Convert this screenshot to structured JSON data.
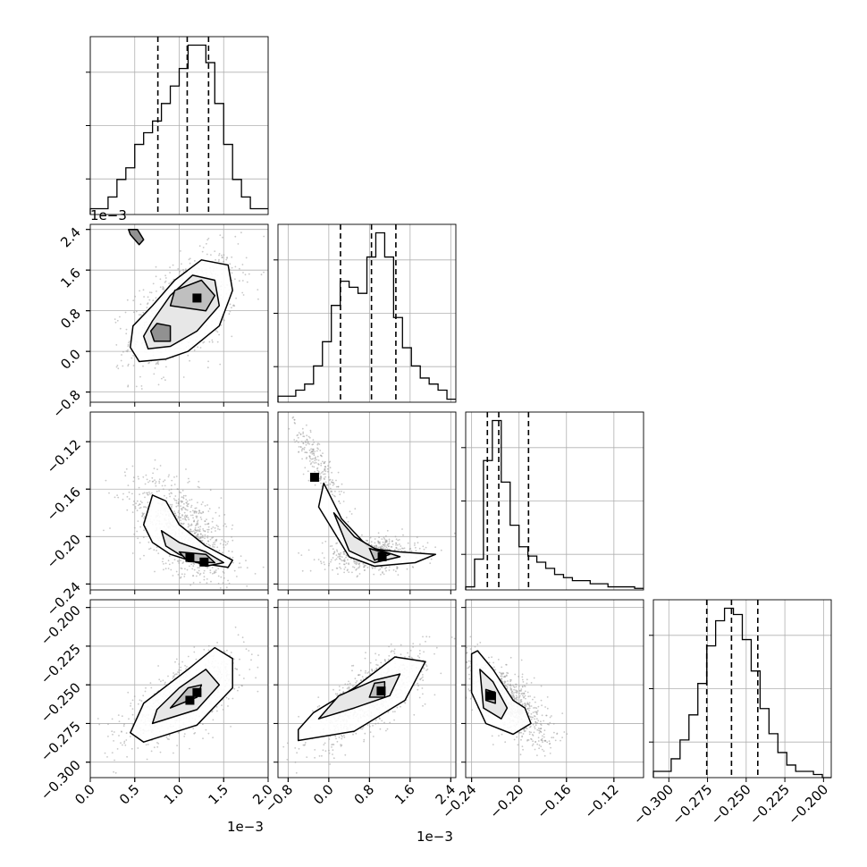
{
  "chart_data": {
    "type": "corner",
    "colors": {
      "line": "#000000",
      "grid": "#b0b0b0",
      "scatter": "#9a9a9a",
      "contour_fill": [
        "#ffffff",
        "#e6e6e6",
        "#bdbdbd",
        "#8c8c8c",
        "#000000"
      ]
    },
    "grid": true,
    "parameters": [
      {
        "range": [
          0,
          0.002
        ],
        "ticks": [
          "0.0",
          "0.5",
          "1.0",
          "1.5",
          "2.0"
        ],
        "tick_values": [
          0,
          0.0005,
          0.001,
          0.0015,
          0.002
        ],
        "multiplier": "1e−3",
        "quantiles": [
          0.00076,
          0.00109,
          0.00133
        ],
        "hist": {
          "edges": [
            0,
            0.0001,
            0.0002,
            0.0003,
            0.0004,
            0.0005,
            0.0006,
            0.0007,
            0.0008,
            0.0009,
            0.001,
            0.0011,
            0.0012,
            0.0013,
            0.0014,
            0.0015,
            0.0016,
            0.0017,
            0.0018,
            0.0019,
            0.002
          ],
          "counts": [
            1,
            1,
            3,
            6,
            8,
            12,
            14,
            16,
            19,
            22,
            25,
            29,
            29,
            26,
            19,
            12,
            6,
            3,
            1,
            1
          ]
        }
      },
      {
        "range": [
          -0.001,
          0.0025
        ],
        "ticks": [
          "−0.8",
          "0.0",
          "0.8",
          "1.6",
          "2.4"
        ],
        "tick_values": [
          -0.0008,
          0,
          0.0008,
          0.0016,
          0.0024
        ],
        "multiplier": "1e−3",
        "quantiles": [
          0.00023,
          0.00084,
          0.00132
        ],
        "hist": {
          "edges": [
            -0.001,
            -0.000825,
            -0.00065,
            -0.000475,
            -0.0003,
            -0.000125,
            5e-05,
            0.000225,
            0.0004,
            0.000575,
            0.00075,
            0.000925,
            0.0011,
            0.001275,
            0.00145,
            0.001625,
            0.0018,
            0.001975,
            0.00215,
            0.002325,
            0.0025
          ],
          "counts": [
            1,
            1,
            2,
            3,
            6,
            10,
            16,
            20,
            19,
            18,
            24,
            28,
            24,
            14,
            9,
            6,
            4,
            3,
            2,
            0.5
          ]
        }
      },
      {
        "range": [
          -0.245,
          -0.095
        ],
        "ticks": [
          "−0.24",
          "−0.20",
          "−0.16",
          "−0.12"
        ],
        "tick_values": [
          -0.24,
          -0.2,
          -0.16,
          -0.12
        ],
        "quantiles": [
          -0.2267,
          -0.2171,
          -0.192
        ],
        "hist": {
          "edges": [
            -0.245,
            -0.2375,
            -0.23,
            -0.2225,
            -0.215,
            -0.2075,
            -0.2,
            -0.1925,
            -0.185,
            -0.1775,
            -0.17,
            -0.1625,
            -0.155,
            -0.1475,
            -0.14,
            -0.1325,
            -0.125,
            -0.1175,
            -0.11,
            -0.1025,
            -0.095
          ],
          "counts": [
            1,
            10,
            42,
            55,
            35,
            21,
            14,
            11,
            9,
            7,
            5,
            4,
            3,
            3,
            2,
            2,
            1,
            1,
            1,
            0.5
          ]
        }
      },
      {
        "range": [
          -0.31,
          -0.195
        ],
        "ticks": [
          "−0.300",
          "−0.275",
          "−0.250",
          "−0.225",
          "−0.200"
        ],
        "tick_values": [
          -0.3,
          -0.275,
          -0.25,
          -0.225,
          -0.2
        ],
        "quantiles": [
          -0.2755,
          -0.2595,
          -0.2425
        ],
        "hist": {
          "edges": [
            -0.31,
            -0.30425,
            -0.2985,
            -0.29275,
            -0.287,
            -0.28125,
            -0.2755,
            -0.26975,
            -0.264,
            -0.25825,
            -0.2525,
            -0.24675,
            -0.241,
            -0.23525,
            -0.2295,
            -0.22375,
            -0.218,
            -0.21225,
            -0.2065,
            -0.20075,
            -0.195
          ],
          "counts": [
            1,
            1,
            3,
            6,
            10,
            15,
            21,
            25,
            27,
            26,
            22,
            17,
            11,
            7,
            4,
            2,
            1,
            1,
            0.5,
            0
          ]
        }
      }
    ],
    "pairs": [
      {
        "x": 0,
        "y": 1,
        "cloud": [
          {
            "mx": 0.00105,
            "my": 0.0008,
            "sx": 0.0003,
            "sy": 0.00055,
            "rho": 0.5,
            "w": 1
          }
        ],
        "contours": [
          [
            [
              0.00045,
              8e-05
            ],
            [
              0.00055,
              -0.0002
            ],
            [
              0.00085,
              -0.00015
            ],
            [
              0.0011,
              0.0
            ],
            [
              0.00145,
              0.0005
            ],
            [
              0.0016,
              0.0012
            ],
            [
              0.00155,
              0.0017
            ],
            [
              0.00125,
              0.0018
            ],
            [
              0.00095,
              0.0014
            ],
            [
              0.0007,
              0.0009
            ],
            [
              0.00048,
              0.0005
            ]
          ],
          [
            [
              0.00065,
              5e-05
            ],
            [
              0.0009,
              0.0001
            ],
            [
              0.0012,
              0.0004
            ],
            [
              0.00145,
              0.0009
            ],
            [
              0.0014,
              0.0014
            ],
            [
              0.00115,
              0.0015
            ],
            [
              0.0009,
              0.0011
            ],
            [
              0.0007,
              0.0006
            ],
            [
              0.0006,
              0.0003
            ]
          ],
          [
            [
              0.0009,
              0.0009
            ],
            [
              0.0013,
              0.0008
            ],
            [
              0.0014,
              0.0011
            ],
            [
              0.00125,
              0.0014
            ],
            [
              0.00095,
              0.0012
            ]
          ],
          [
            [
              0.00072,
              0.0002
            ],
            [
              0.0009,
              0.0002
            ],
            [
              0.0009,
              0.0005
            ],
            [
              0.00075,
              0.00055
            ],
            [
              0.00068,
              0.0004
            ]
          ],
          [
            [
              0.00043,
              0.0024
            ],
            [
              0.00053,
              0.0024
            ],
            [
              0.0006,
              0.0022
            ],
            [
              0.00055,
              0.0021
            ],
            [
              0.00045,
              0.0023
            ]
          ]
        ],
        "peaks": [
          {
            "x": 0.0012,
            "y": 0.00105
          }
        ]
      },
      {
        "x": 0,
        "y": 2,
        "cloud": [
          {
            "mx": 0.00105,
            "my": -0.195,
            "sx": 0.00028,
            "sy": 0.022,
            "rho": -0.55,
            "w": 1
          }
        ],
        "contours": [
          [
            [
              0.0007,
              -0.165
            ],
            [
              0.00085,
              -0.17
            ],
            [
              0.001,
              -0.19
            ],
            [
              0.0013,
              -0.208
            ],
            [
              0.0016,
              -0.22
            ],
            [
              0.00155,
              -0.226
            ],
            [
              0.0012,
              -0.222
            ],
            [
              0.0009,
              -0.215
            ],
            [
              0.0007,
              -0.205
            ],
            [
              0.0006,
              -0.19
            ]
          ],
          [
            [
              0.0008,
              -0.195
            ],
            [
              0.001,
              -0.205
            ],
            [
              0.0013,
              -0.213
            ],
            [
              0.0015,
              -0.222
            ],
            [
              0.0013,
              -0.225
            ],
            [
              0.001,
              -0.215
            ],
            [
              0.00085,
              -0.208
            ]
          ],
          [
            [
              0.001,
              -0.213
            ],
            [
              0.0013,
              -0.215
            ],
            [
              0.0014,
              -0.222
            ],
            [
              0.0011,
              -0.221
            ]
          ]
        ],
        "peaks": [
          {
            "x": 0.00112,
            "y": -0.2175
          },
          {
            "x": 0.00128,
            "y": -0.2215
          }
        ]
      },
      {
        "x": 1,
        "y": 2,
        "cloud": [
          {
            "mx": -0.0002,
            "my": -0.14,
            "sx": 0.00025,
            "sy": 0.02,
            "rho": -0.85,
            "w": 0.25
          },
          {
            "mx": 0.00085,
            "my": -0.215,
            "sx": 0.00045,
            "sy": 0.007,
            "rho": 0.1,
            "w": 0.75
          }
        ],
        "contours": [
          [
            [
              -0.0001,
              -0.155
            ],
            [
              0.00025,
              -0.185
            ],
            [
              0.0008,
              -0.21
            ],
            [
              0.0014,
              -0.213
            ],
            [
              0.0021,
              -0.215
            ],
            [
              0.0017,
              -0.222
            ],
            [
              0.0009,
              -0.225
            ],
            [
              0.0004,
              -0.217
            ],
            [
              -0.0002,
              -0.175
            ]
          ],
          [
            [
              0.0001,
              -0.18
            ],
            [
              0.0005,
              -0.2
            ],
            [
              0.0009,
              -0.21
            ],
            [
              0.0014,
              -0.217
            ],
            [
              0.0009,
              -0.222
            ],
            [
              0.0004,
              -0.212
            ]
          ],
          [
            [
              0.0008,
              -0.21
            ],
            [
              0.0012,
              -0.215
            ],
            [
              0.0009,
              -0.22
            ]
          ]
        ],
        "peaks": [
          {
            "x": 0.00105,
            "y": -0.217
          },
          {
            "x": -0.00028,
            "y": -0.15
          }
        ]
      },
      {
        "x": 0,
        "y": 3,
        "cloud": [
          {
            "mx": 0.00105,
            "my": -0.259,
            "sx": 0.00032,
            "sy": 0.014,
            "rho": 0.7,
            "w": 1
          }
        ],
        "contours": [
          [
            [
              0.00045,
              -0.281
            ],
            [
              0.0006,
              -0.287
            ],
            [
              0.0012,
              -0.276
            ],
            [
              0.0016,
              -0.252
            ],
            [
              0.0016,
              -0.233
            ],
            [
              0.0014,
              -0.226
            ],
            [
              0.0011,
              -0.24
            ],
            [
              0.0006,
              -0.262
            ]
          ],
          [
            [
              0.0007,
              -0.275
            ],
            [
              0.0012,
              -0.266
            ],
            [
              0.00145,
              -0.25
            ],
            [
              0.0013,
              -0.24
            ],
            [
              0.001,
              -0.252
            ],
            [
              0.00075,
              -0.266
            ]
          ],
          [
            [
              0.0009,
              -0.265
            ],
            [
              0.0012,
              -0.258
            ],
            [
              0.00125,
              -0.25
            ],
            [
              0.0011,
              -0.252
            ]
          ]
        ],
        "peaks": [
          {
            "x": 0.00112,
            "y": -0.26
          },
          {
            "x": 0.0012,
            "y": -0.255
          }
        ]
      },
      {
        "x": 1,
        "y": 3,
        "cloud": [
          {
            "mx": 0.0008,
            "my": -0.258,
            "sx": 0.00055,
            "sy": 0.015,
            "rho": 0.75,
            "w": 1
          }
        ],
        "contours": [
          [
            [
              -0.0006,
              -0.279
            ],
            [
              -0.0006,
              -0.286
            ],
            [
              0.0005,
              -0.28
            ],
            [
              0.0015,
              -0.26
            ],
            [
              0.0019,
              -0.235
            ],
            [
              0.0013,
              -0.232
            ],
            [
              0.0005,
              -0.252
            ],
            [
              -0.0003,
              -0.268
            ]
          ],
          [
            [
              -0.0002,
              -0.272
            ],
            [
              0.0005,
              -0.265
            ],
            [
              0.0012,
              -0.257
            ],
            [
              0.0014,
              -0.243
            ],
            [
              0.0009,
              -0.247
            ],
            [
              0.0002,
              -0.257
            ]
          ],
          [
            [
              0.0008,
              -0.258
            ],
            [
              0.0011,
              -0.258
            ],
            [
              0.0011,
              -0.248
            ],
            [
              0.0009,
              -0.249
            ]
          ]
        ],
        "peaks": [
          {
            "x": 0.00103,
            "y": -0.254
          }
        ]
      },
      {
        "x": 2,
        "y": 3,
        "cloud": [
          {
            "mx": -0.21,
            "my": -0.26,
            "sx": 0.017,
            "sy": 0.014,
            "rho": -0.7,
            "w": 1
          }
        ],
        "contours": [
          [
            [
              -0.24,
              -0.23
            ],
            [
              -0.235,
              -0.228
            ],
            [
              -0.222,
              -0.24
            ],
            [
              -0.205,
              -0.26
            ],
            [
              -0.195,
              -0.265
            ],
            [
              -0.19,
              -0.275
            ],
            [
              -0.205,
              -0.282
            ],
            [
              -0.228,
              -0.275
            ],
            [
              -0.24,
              -0.255
            ]
          ],
          [
            [
              -0.233,
              -0.24
            ],
            [
              -0.222,
              -0.248
            ],
            [
              -0.21,
              -0.265
            ],
            [
              -0.215,
              -0.272
            ],
            [
              -0.23,
              -0.265
            ]
          ],
          [
            [
              -0.228,
              -0.253
            ],
            [
              -0.22,
              -0.255
            ],
            [
              -0.22,
              -0.262
            ],
            [
              -0.228,
              -0.26
            ]
          ]
        ],
        "peaks": [
          {
            "x": -0.224,
            "y": -0.257
          }
        ]
      }
    ]
  }
}
